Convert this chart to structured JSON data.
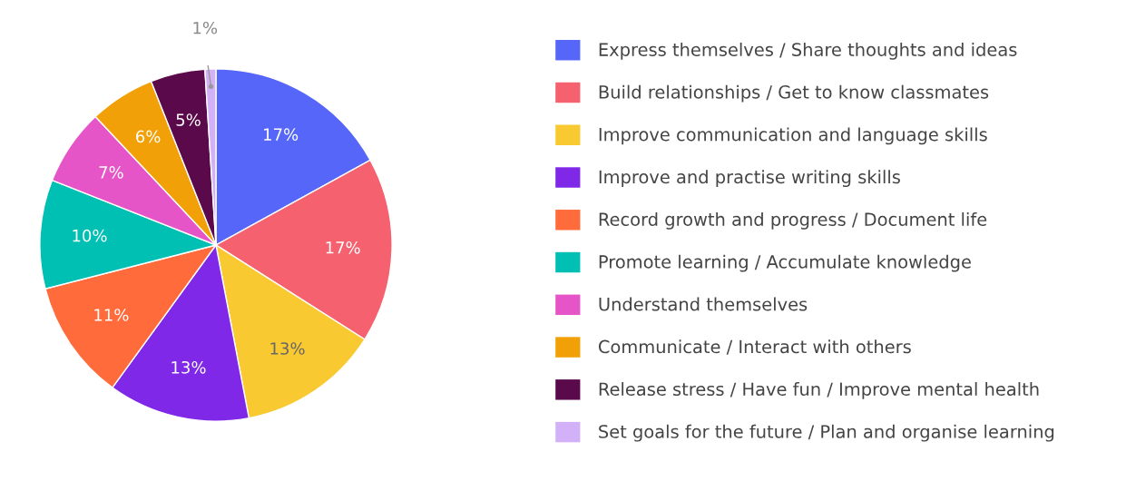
{
  "chart_data": {
    "type": "pie",
    "categories": [
      "Express themselves / Share thoughts and ideas",
      "Build relationships / Get to know classmates",
      "Improve communication and language skills",
      "Improve and practise writing skills",
      "Record growth and progress / Document life",
      "Promote learning / Accumulate knowledge",
      "Understand themselves",
      "Communicate / Interact with others",
      "Release stress / Have fun / Improve mental health",
      "Set goals for the future / Plan and organise learning"
    ],
    "values": [
      17,
      17,
      13,
      13,
      11,
      10,
      7,
      6,
      5,
      1
    ],
    "colors": [
      "#5566f8",
      "#f5616f",
      "#f9c932",
      "#8028e8",
      "#ff6b3a",
      "#00bfb3",
      "#e655c8",
      "#f2a007",
      "#5a0a4a",
      "#d3b1f8"
    ],
    "value_labels": [
      "17%",
      "17%",
      "13%",
      "13%",
      "11%",
      "10%",
      "7%",
      "6%",
      "5%",
      "1%"
    ],
    "legend": "right"
  }
}
